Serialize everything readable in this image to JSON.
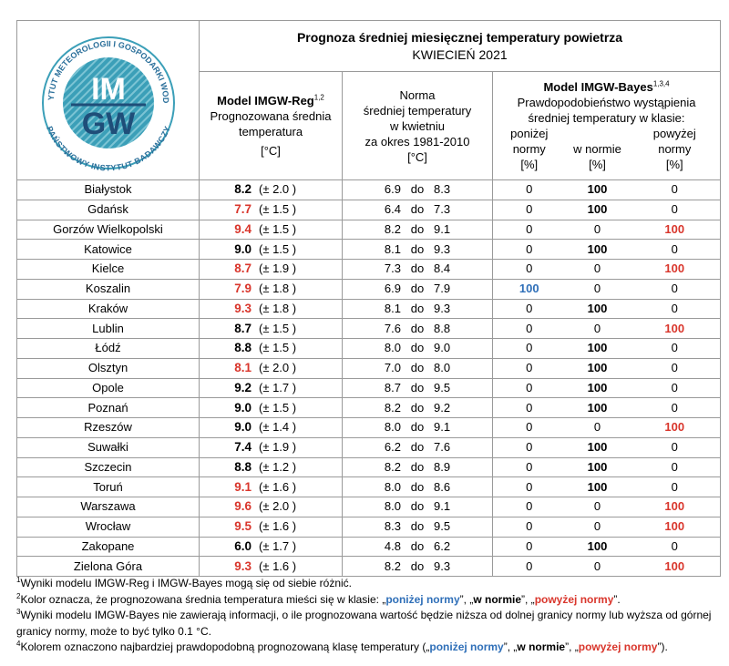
{
  "header": {
    "title": "Prognoza średniej miesięcznej temperatury powietrza",
    "subtitle": "KWIECIEŃ 2021"
  },
  "logo": {
    "top_text": "INSTYTUT METEOROLOGII I GOSPODARKI WODNEJ",
    "bottom_text": "PAŃSTWOWY INSTYTUT BADAWCZY",
    "line1": "IM",
    "line2": "GW"
  },
  "columns": {
    "reg": {
      "title": "Model IMGW-Reg",
      "sup": "1,2",
      "lines": [
        "Prognozowana średnia",
        "temperatura"
      ],
      "unit": "[°C]"
    },
    "norm": {
      "lines": [
        "Norma",
        "średniej temperatury",
        "w kwietniu",
        "za okres 1981-2010"
      ],
      "unit": "[°C]"
    },
    "bayes": {
      "title": "Model IMGW-Bayes",
      "sup": "1,3,4",
      "lines": [
        "Prawdopodobieństwo wystąpienia",
        "średniej temperatury w klasie:"
      ],
      "classes": [
        {
          "lines": [
            "poniżej",
            "normy"
          ],
          "unit": "[%]",
          "color": "#2f6fb8"
        },
        {
          "lines": [
            "w normie"
          ],
          "unit": "[%]",
          "color": "#000000"
        },
        {
          "lines": [
            "powyżej",
            "normy"
          ],
          "unit": "[%]",
          "color": "#d9362c"
        }
      ]
    }
  },
  "table": {
    "range_word": "do",
    "rows": [
      {
        "city": "Białystok",
        "temp": "8.2",
        "err": "(± 2.0 )",
        "color": "#000000",
        "norm_low": "6.9",
        "norm_high": "8.3",
        "probs": [
          0,
          100,
          0
        ]
      },
      {
        "city": "Gdańsk",
        "temp": "7.7",
        "err": "(± 1.5 )",
        "color": "#d9362c",
        "norm_low": "6.4",
        "norm_high": "7.3",
        "probs": [
          0,
          100,
          0
        ]
      },
      {
        "city": "Gorzów Wielkopolski",
        "temp": "9.4",
        "err": "(± 1.5 )",
        "color": "#d9362c",
        "norm_low": "8.2",
        "norm_high": "9.1",
        "probs": [
          0,
          0,
          100
        ]
      },
      {
        "city": "Katowice",
        "temp": "9.0",
        "err": "(± 1.5 )",
        "color": "#000000",
        "norm_low": "8.1",
        "norm_high": "9.3",
        "probs": [
          0,
          100,
          0
        ]
      },
      {
        "city": "Kielce",
        "temp": "8.7",
        "err": "(± 1.9 )",
        "color": "#d9362c",
        "norm_low": "7.3",
        "norm_high": "8.4",
        "probs": [
          0,
          0,
          100
        ]
      },
      {
        "city": "Koszalin",
        "temp": "7.9",
        "err": "(± 1.8 )",
        "color": "#d9362c",
        "norm_low": "6.9",
        "norm_high": "7.9",
        "probs": [
          100,
          0,
          0
        ]
      },
      {
        "city": "Kraków",
        "temp": "9.3",
        "err": "(± 1.8 )",
        "color": "#d9362c",
        "norm_low": "8.1",
        "norm_high": "9.3",
        "probs": [
          0,
          100,
          0
        ]
      },
      {
        "city": "Lublin",
        "temp": "8.7",
        "err": "(± 1.5 )",
        "color": "#000000",
        "norm_low": "7.6",
        "norm_high": "8.8",
        "probs": [
          0,
          0,
          100
        ]
      },
      {
        "city": "Łódź",
        "temp": "8.8",
        "err": "(± 1.5 )",
        "color": "#000000",
        "norm_low": "8.0",
        "norm_high": "9.0",
        "probs": [
          0,
          100,
          0
        ]
      },
      {
        "city": "Olsztyn",
        "temp": "8.1",
        "err": "(± 2.0 )",
        "color": "#d9362c",
        "norm_low": "7.0",
        "norm_high": "8.0",
        "probs": [
          0,
          100,
          0
        ]
      },
      {
        "city": "Opole",
        "temp": "9.2",
        "err": "(± 1.7 )",
        "color": "#000000",
        "norm_low": "8.7",
        "norm_high": "9.5",
        "probs": [
          0,
          100,
          0
        ]
      },
      {
        "city": "Poznań",
        "temp": "9.0",
        "err": "(± 1.5 )",
        "color": "#000000",
        "norm_low": "8.2",
        "norm_high": "9.2",
        "probs": [
          0,
          100,
          0
        ]
      },
      {
        "city": "Rzeszów",
        "temp": "9.0",
        "err": "(± 1.4 )",
        "color": "#000000",
        "norm_low": "8.0",
        "norm_high": "9.1",
        "probs": [
          0,
          0,
          100
        ]
      },
      {
        "city": "Suwałki",
        "temp": "7.4",
        "err": "(± 1.9 )",
        "color": "#000000",
        "norm_low": "6.2",
        "norm_high": "7.6",
        "probs": [
          0,
          100,
          0
        ]
      },
      {
        "city": "Szczecin",
        "temp": "8.8",
        "err": "(± 1.2 )",
        "color": "#000000",
        "norm_low": "8.2",
        "norm_high": "8.9",
        "probs": [
          0,
          100,
          0
        ]
      },
      {
        "city": "Toruń",
        "temp": "9.1",
        "err": "(± 1.6 )",
        "color": "#d9362c",
        "norm_low": "8.0",
        "norm_high": "8.6",
        "probs": [
          0,
          100,
          0
        ]
      },
      {
        "city": "Warszawa",
        "temp": "9.6",
        "err": "(± 2.0 )",
        "color": "#d9362c",
        "norm_low": "8.0",
        "norm_high": "9.1",
        "probs": [
          0,
          0,
          100
        ]
      },
      {
        "city": "Wrocław",
        "temp": "9.5",
        "err": "(± 1.6 )",
        "color": "#d9362c",
        "norm_low": "8.3",
        "norm_high": "9.5",
        "probs": [
          0,
          0,
          100
        ]
      },
      {
        "city": "Zakopane",
        "temp": "6.0",
        "err": "(± 1.7 )",
        "color": "#000000",
        "norm_low": "4.8",
        "norm_high": "6.2",
        "probs": [
          0,
          100,
          0
        ]
      },
      {
        "city": "Zielona Góra",
        "temp": "9.3",
        "err": "(± 1.6 )",
        "color": "#d9362c",
        "norm_low": "8.2",
        "norm_high": "9.3",
        "probs": [
          0,
          0,
          100
        ]
      }
    ]
  },
  "footnotes": [
    {
      "sup": "1",
      "segments": [
        {
          "text": "Wyniki modelu IMGW-Reg i IMGW-Bayes mogą się od siebie różnić."
        }
      ]
    },
    {
      "sup": "2",
      "segments": [
        {
          "text": "Kolor oznacza, że prognozowana średnia temperatura mieści się w klasie: „"
        },
        {
          "text": "poniżej normy",
          "color": "#2f6fb8",
          "bold": true
        },
        {
          "text": "”, „"
        },
        {
          "text": "w normie",
          "bold": true
        },
        {
          "text": "”, „"
        },
        {
          "text": "powyżej normy",
          "color": "#d9362c",
          "bold": true
        },
        {
          "text": "”."
        }
      ]
    },
    {
      "sup": "3",
      "segments": [
        {
          "text": "Wyniki modelu IMGW-Bayes nie zawierają informacji, o ile prognozowana wartość będzie niższa od dolnej granicy normy lub wyższa od górnej granicy normy, może to być tylko 0.1 °C."
        }
      ]
    },
    {
      "sup": "4",
      "segments": [
        {
          "text": "Kolorem oznaczono najbardziej prawdopodobną prognozowaną klasę temperatury („"
        },
        {
          "text": "poniżej normy",
          "color": "#2f6fb8",
          "bold": true
        },
        {
          "text": "”, „"
        },
        {
          "text": "w normie",
          "bold": true
        },
        {
          "text": "”, „"
        },
        {
          "text": "powyżej normy",
          "color": "#d9362c",
          "bold": true
        },
        {
          "text": "”)."
        }
      ]
    }
  ]
}
